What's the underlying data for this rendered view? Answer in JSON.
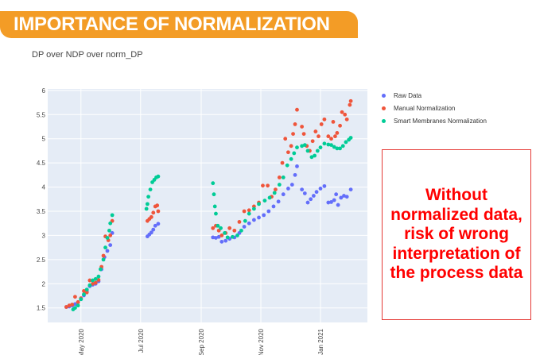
{
  "slide": {
    "title": "IMPORTANCE OF NORMALIZATION",
    "callout": "Without normalized data, risk of wrong interpretation of the process data",
    "banner_color": "#F39C26",
    "callout_color": "#FF0000"
  },
  "chart_data": {
    "type": "scatter",
    "title": "DP over NDP over norm_DP",
    "xlabel": "",
    "ylabel": "",
    "xlim": [
      "2020-03-28",
      "2021-02-18"
    ],
    "ylim": [
      1.2,
      6.03
    ],
    "yticks": [
      1.5,
      2,
      2.5,
      3,
      3.5,
      4,
      4.5,
      5,
      5.5,
      6
    ],
    "xticks": [
      {
        "date": "2020-05-01",
        "label": "May 2020"
      },
      {
        "date": "2020-07-01",
        "label": "Jul 2020"
      },
      {
        "date": "2020-09-01",
        "label": "Sep 2020"
      },
      {
        "date": "2020-11-01",
        "label": "Nov 2020"
      },
      {
        "date": "2021-01-01",
        "label": "Jan 2021"
      }
    ],
    "grid": true,
    "legend_placement": "right",
    "background": "#E5ECF6",
    "series": [
      {
        "name": "Raw Data",
        "color": "#636EFA",
        "points": [
          [
            "2020-04-16",
            1.52
          ],
          [
            "2020-04-19",
            1.53
          ],
          [
            "2020-04-22",
            1.55
          ],
          [
            "2020-04-25",
            1.58
          ],
          [
            "2020-04-28",
            1.62
          ],
          [
            "2020-05-01",
            1.68
          ],
          [
            "2020-05-04",
            1.76
          ],
          [
            "2020-05-07",
            1.85
          ],
          [
            "2020-05-10",
            1.95
          ],
          [
            "2020-05-13",
            1.98
          ],
          [
            "2020-05-16",
            2.0
          ],
          [
            "2020-05-19",
            2.05
          ],
          [
            "2020-05-22",
            2.3
          ],
          [
            "2020-05-25",
            2.55
          ],
          [
            "2020-05-28",
            2.68
          ],
          [
            "2020-05-31",
            2.8
          ],
          [
            "2020-06-02",
            3.05
          ],
          [
            "2020-07-08",
            2.98
          ],
          [
            "2020-07-10",
            3.02
          ],
          [
            "2020-07-12",
            3.06
          ],
          [
            "2020-07-14",
            3.12
          ],
          [
            "2020-07-16",
            3.2
          ],
          [
            "2020-07-19",
            3.24
          ],
          [
            "2020-09-13",
            2.96
          ],
          [
            "2020-09-16",
            2.95
          ],
          [
            "2020-09-19",
            2.97
          ],
          [
            "2020-09-22",
            2.87
          ],
          [
            "2020-09-26",
            2.89
          ],
          [
            "2020-09-30",
            2.93
          ],
          [
            "2020-10-05",
            2.96
          ],
          [
            "2020-10-10",
            3.05
          ],
          [
            "2020-10-15",
            3.18
          ],
          [
            "2020-10-20",
            3.25
          ],
          [
            "2020-10-25",
            3.32
          ],
          [
            "2020-10-30",
            3.37
          ],
          [
            "2020-11-04",
            3.42
          ],
          [
            "2020-11-09",
            3.5
          ],
          [
            "2020-11-14",
            3.6
          ],
          [
            "2020-11-19",
            3.7
          ],
          [
            "2020-11-24",
            3.85
          ],
          [
            "2020-11-29",
            3.97
          ],
          [
            "2020-12-03",
            4.05
          ],
          [
            "2020-12-06",
            4.25
          ],
          [
            "2020-12-08",
            4.43
          ],
          [
            "2020-12-13",
            3.95
          ],
          [
            "2020-12-16",
            3.87
          ],
          [
            "2020-12-19",
            3.68
          ],
          [
            "2020-12-22",
            3.75
          ],
          [
            "2020-12-25",
            3.82
          ],
          [
            "2020-12-28",
            3.9
          ],
          [
            "2021-01-01",
            3.97
          ],
          [
            "2021-01-05",
            4.02
          ],
          [
            "2021-01-09",
            3.68
          ],
          [
            "2021-01-12",
            3.69
          ],
          [
            "2021-01-15",
            3.73
          ],
          [
            "2021-01-17",
            3.85
          ],
          [
            "2021-01-19",
            3.63
          ],
          [
            "2021-01-22",
            3.78
          ],
          [
            "2021-01-25",
            3.82
          ],
          [
            "2021-01-28",
            3.8
          ],
          [
            "2021-02-01",
            3.95
          ]
        ]
      },
      {
        "name": "Manual Normalization",
        "color": "#EF553B",
        "points": [
          [
            "2020-04-16",
            1.52
          ],
          [
            "2020-04-19",
            1.55
          ],
          [
            "2020-04-22",
            1.57
          ],
          [
            "2020-04-25",
            1.73
          ],
          [
            "2020-04-28",
            1.62
          ],
          [
            "2020-05-01",
            1.7
          ],
          [
            "2020-05-04",
            1.85
          ],
          [
            "2020-05-07",
            1.82
          ],
          [
            "2020-05-10",
            2.07
          ],
          [
            "2020-05-13",
            2.0
          ],
          [
            "2020-05-16",
            2.02
          ],
          [
            "2020-05-19",
            2.08
          ],
          [
            "2020-05-22",
            2.35
          ],
          [
            "2020-05-24",
            2.58
          ],
          [
            "2020-05-26",
            2.98
          ],
          [
            "2020-05-29",
            2.9
          ],
          [
            "2020-05-31",
            3.0
          ],
          [
            "2020-06-02",
            3.3
          ],
          [
            "2020-07-08",
            3.3
          ],
          [
            "2020-07-10",
            3.34
          ],
          [
            "2020-07-12",
            3.38
          ],
          [
            "2020-07-14",
            3.47
          ],
          [
            "2020-07-16",
            3.6
          ],
          [
            "2020-07-18",
            3.62
          ],
          [
            "2020-07-19",
            3.5
          ],
          [
            "2020-09-13",
            3.15
          ],
          [
            "2020-09-16",
            3.2
          ],
          [
            "2020-09-19",
            3.1
          ],
          [
            "2020-09-22",
            3.0
          ],
          [
            "2020-09-26",
            3.05
          ],
          [
            "2020-09-30",
            3.15
          ],
          [
            "2020-10-05",
            3.1
          ],
          [
            "2020-10-10",
            3.28
          ],
          [
            "2020-10-15",
            3.5
          ],
          [
            "2020-10-20",
            3.52
          ],
          [
            "2020-10-25",
            3.6
          ],
          [
            "2020-10-30",
            3.68
          ],
          [
            "2020-11-03",
            4.03
          ],
          [
            "2020-11-08",
            4.03
          ],
          [
            "2020-11-12",
            3.8
          ],
          [
            "2020-11-16",
            3.95
          ],
          [
            "2020-11-20",
            4.2
          ],
          [
            "2020-11-23",
            4.5
          ],
          [
            "2020-11-26",
            5.0
          ],
          [
            "2020-11-29",
            4.72
          ],
          [
            "2020-12-02",
            4.85
          ],
          [
            "2020-12-04",
            5.1
          ],
          [
            "2020-12-06",
            5.3
          ],
          [
            "2020-12-08",
            5.6
          ],
          [
            "2020-12-13",
            5.25
          ],
          [
            "2020-12-15",
            5.1
          ],
          [
            "2020-12-18",
            4.85
          ],
          [
            "2020-12-21",
            4.75
          ],
          [
            "2020-12-24",
            4.95
          ],
          [
            "2020-12-27",
            5.15
          ],
          [
            "2020-12-30",
            5.05
          ],
          [
            "2021-01-02",
            5.3
          ],
          [
            "2021-01-05",
            5.4
          ],
          [
            "2021-01-09",
            5.05
          ],
          [
            "2021-01-12",
            5.0
          ],
          [
            "2021-01-14",
            5.35
          ],
          [
            "2021-01-16",
            5.05
          ],
          [
            "2021-01-18",
            5.12
          ],
          [
            "2021-01-21",
            5.27
          ],
          [
            "2021-01-23",
            5.55
          ],
          [
            "2021-01-26",
            5.5
          ],
          [
            "2021-01-28",
            5.4
          ],
          [
            "2021-01-31",
            5.7
          ],
          [
            "2021-02-01",
            5.78
          ]
        ]
      },
      {
        "name": "Smart Membranes Normalization",
        "color": "#00CC96",
        "points": [
          [
            "2020-04-23",
            1.47
          ],
          [
            "2020-04-25",
            1.5
          ],
          [
            "2020-04-28",
            1.55
          ],
          [
            "2020-05-01",
            1.68
          ],
          [
            "2020-05-04",
            1.78
          ],
          [
            "2020-05-07",
            1.88
          ],
          [
            "2020-05-10",
            1.97
          ],
          [
            "2020-05-13",
            2.07
          ],
          [
            "2020-05-16",
            2.1
          ],
          [
            "2020-05-19",
            2.15
          ],
          [
            "2020-05-21",
            2.3
          ],
          [
            "2020-05-24",
            2.5
          ],
          [
            "2020-05-26",
            2.75
          ],
          [
            "2020-05-28",
            2.95
          ],
          [
            "2020-05-30",
            3.1
          ],
          [
            "2020-05-31",
            3.25
          ],
          [
            "2020-06-02",
            3.42
          ],
          [
            "2020-07-07",
            3.55
          ],
          [
            "2020-07-08",
            3.65
          ],
          [
            "2020-07-09",
            3.8
          ],
          [
            "2020-07-11",
            3.95
          ],
          [
            "2020-07-13",
            4.1
          ],
          [
            "2020-07-15",
            4.15
          ],
          [
            "2020-07-17",
            4.2
          ],
          [
            "2020-07-19",
            4.22
          ],
          [
            "2020-09-13",
            4.08
          ],
          [
            "2020-09-14",
            3.85
          ],
          [
            "2020-09-15",
            3.6
          ],
          [
            "2020-09-16",
            3.45
          ],
          [
            "2020-09-18",
            3.2
          ],
          [
            "2020-09-21",
            3.15
          ],
          [
            "2020-09-25",
            3.05
          ],
          [
            "2020-09-28",
            2.96
          ],
          [
            "2020-10-03",
            2.97
          ],
          [
            "2020-10-08",
            3.0
          ],
          [
            "2020-10-12",
            3.1
          ],
          [
            "2020-10-16",
            3.3
          ],
          [
            "2020-10-20",
            3.45
          ],
          [
            "2020-10-25",
            3.55
          ],
          [
            "2020-10-30",
            3.65
          ],
          [
            "2020-11-05",
            3.72
          ],
          [
            "2020-11-10",
            3.78
          ],
          [
            "2020-11-15",
            3.88
          ],
          [
            "2020-11-20",
            4.05
          ],
          [
            "2020-11-24",
            4.2
          ],
          [
            "2020-11-28",
            4.45
          ],
          [
            "2020-12-02",
            4.58
          ],
          [
            "2020-12-05",
            4.7
          ],
          [
            "2020-12-08",
            4.82
          ],
          [
            "2020-12-13",
            4.85
          ],
          [
            "2020-12-16",
            4.87
          ],
          [
            "2020-12-19",
            4.75
          ],
          [
            "2020-12-23",
            4.62
          ],
          [
            "2020-12-26",
            4.65
          ],
          [
            "2020-12-29",
            4.75
          ],
          [
            "2021-01-01",
            4.82
          ],
          [
            "2021-01-05",
            4.9
          ],
          [
            "2021-01-09",
            4.88
          ],
          [
            "2021-01-12",
            4.87
          ],
          [
            "2021-01-15",
            4.83
          ],
          [
            "2021-01-18",
            4.8
          ],
          [
            "2021-01-21",
            4.8
          ],
          [
            "2021-01-24",
            4.85
          ],
          [
            "2021-01-27",
            4.93
          ],
          [
            "2021-01-30",
            4.98
          ],
          [
            "2021-02-01",
            5.02
          ]
        ]
      }
    ]
  }
}
